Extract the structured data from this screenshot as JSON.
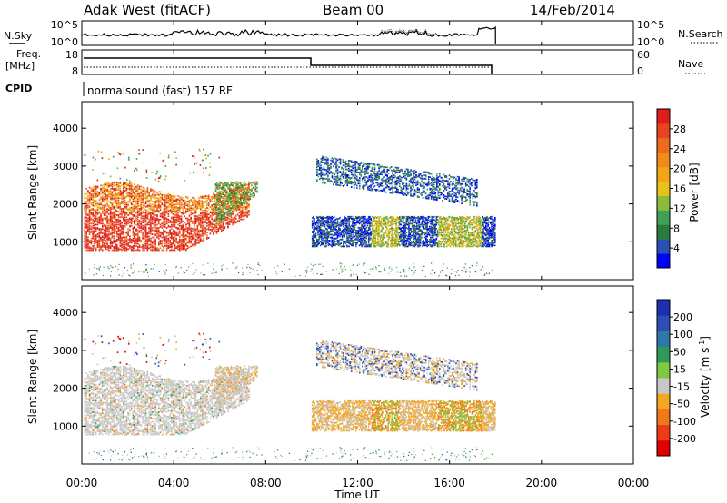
{
  "header": {
    "station": "Adak West (fitACF)",
    "beam": "Beam 00",
    "date": "14/Feb/2014"
  },
  "nsky_panel": {
    "left_label": "N.Sky",
    "left_ticks": [
      "10^5",
      "10^0"
    ],
    "right_ticks": [
      "10^5",
      "10^0"
    ],
    "right_label": "N.Search"
  },
  "freq_panel": {
    "left_label": "Freq.",
    "left_unit": "[MHz]",
    "left_ticks": [
      "18",
      "8"
    ],
    "right_ticks": [
      "60",
      "0"
    ],
    "right_label": "Nave"
  },
  "cpid": {
    "label": "CPID",
    "text": "normalsound (fast) 157 RF"
  },
  "colors": {
    "power": [
      "#0000ff",
      "#2a4fb5",
      "#2e7a3c",
      "#3fa057",
      "#8bbb3b",
      "#e6c21a",
      "#f2a516",
      "#f08a18",
      "#ee6a1f",
      "#e8451f",
      "#de1d1d"
    ],
    "velocity": [
      "#e00000",
      "#ec3b16",
      "#f07818",
      "#f5a623",
      "#c8c8c8",
      "#7fc843",
      "#2e9a57",
      "#2f77a8",
      "#2c4fb5",
      "#1c2fb0"
    ]
  },
  "chart_data": [
    {
      "type": "heatmap",
      "name": "power",
      "ylabel": "Slant Range [km]",
      "yticks": [
        1000,
        2000,
        3000,
        4000
      ],
      "ylim": [
        0,
        4700
      ],
      "xlim": [
        0,
        24
      ],
      "colorbar_label": "Power [dB]",
      "colorbar_ticks": [
        "4",
        "8",
        "12",
        "16",
        "20",
        "24",
        "28"
      ],
      "colorbar_range": [
        0,
        32
      ]
    },
    {
      "type": "heatmap",
      "name": "velocity",
      "ylabel": "Slant Range [km]",
      "yticks": [
        1000,
        2000,
        3000,
        4000
      ],
      "ylim": [
        0,
        4700
      ],
      "xlim": [
        0,
        24
      ],
      "colorbar_label": "Velocity [m s",
      "colorbar_label_sup": "-1",
      "colorbar_label_end": "]",
      "colorbar_ticks": [
        "-200",
        "-100",
        "-50",
        "-15",
        "15",
        "50",
        "100",
        "200"
      ]
    }
  ],
  "xaxis": {
    "label": "Time UT",
    "ticks": [
      "00:00",
      "04:00",
      "08:00",
      "12:00",
      "16:00",
      "20:00",
      "00:00"
    ]
  }
}
